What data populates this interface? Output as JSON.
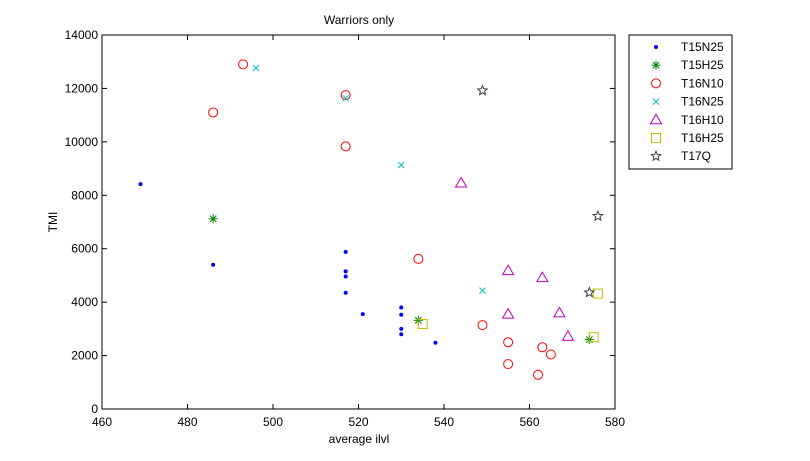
{
  "chart_data": {
    "type": "scatter",
    "title": "Warriors only",
    "xlabel": "average ilvl",
    "ylabel": "TMI",
    "xlim": [
      460,
      580
    ],
    "ylim": [
      0,
      14000
    ],
    "xticks": [
      "460",
      "480",
      "500",
      "520",
      "540",
      "560",
      "580"
    ],
    "yticks": [
      "0",
      "2000",
      "4000",
      "6000",
      "8000",
      "10000",
      "12000",
      "14000"
    ],
    "grid": false,
    "legend_position": "outside-top-right",
    "series": [
      {
        "name": "T15N25",
        "marker": "dot",
        "color": "#0000ff",
        "points": [
          [
            469,
            8420
          ],
          [
            486,
            5400
          ],
          [
            517,
            5880
          ],
          [
            517,
            5150
          ],
          [
            517,
            4960
          ],
          [
            517,
            4350
          ],
          [
            521,
            3550
          ],
          [
            530,
            3800
          ],
          [
            530,
            3530
          ],
          [
            530,
            3000
          ],
          [
            530,
            2800
          ],
          [
            538,
            2480
          ]
        ]
      },
      {
        "name": "T15H25",
        "marker": "asterisk",
        "color": "#008000",
        "points": [
          [
            486,
            7120
          ],
          [
            534,
            3320
          ],
          [
            574,
            2600
          ]
        ]
      },
      {
        "name": "T16N10",
        "marker": "circle",
        "color": "#ff0000",
        "points": [
          [
            486,
            11100
          ],
          [
            493,
            12900
          ],
          [
            517,
            11750
          ],
          [
            517,
            9830
          ],
          [
            534,
            5620
          ],
          [
            549,
            3140
          ],
          [
            555,
            2500
          ],
          [
            555,
            1680
          ],
          [
            562,
            1280
          ],
          [
            563,
            2310
          ],
          [
            565,
            2040
          ]
        ]
      },
      {
        "name": "T16N25",
        "marker": "x",
        "color": "#00bfbf",
        "points": [
          [
            496,
            12760
          ],
          [
            517,
            11630
          ],
          [
            530,
            9130
          ],
          [
            549,
            4430
          ]
        ]
      },
      {
        "name": "T16H10",
        "marker": "triangle",
        "color": "#bf00bf",
        "points": [
          [
            544,
            8460
          ],
          [
            555,
            5180
          ],
          [
            555,
            3550
          ],
          [
            563,
            4920
          ],
          [
            567,
            3600
          ],
          [
            569,
            2720
          ]
        ]
      },
      {
        "name": "T16H25",
        "marker": "square",
        "color": "#bfbf00",
        "points": [
          [
            535,
            3180
          ],
          [
            575,
            2690
          ],
          [
            576,
            4320
          ]
        ]
      },
      {
        "name": "T17Q",
        "marker": "star",
        "color": "#404040",
        "points": [
          [
            549,
            11920
          ],
          [
            574,
            4360
          ],
          [
            576,
            7220
          ]
        ]
      }
    ]
  }
}
